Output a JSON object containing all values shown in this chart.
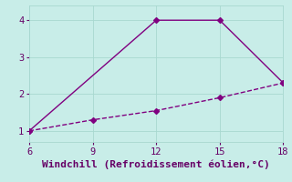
{
  "xlabel": "Windchill (Refroidissement éolien,°C)",
  "line1_x": [
    6,
    9,
    12,
    15,
    18
  ],
  "line1_y": [
    1.0,
    1.3,
    1.55,
    1.9,
    2.3
  ],
  "line2_x": [
    6,
    12,
    15,
    18
  ],
  "line2_y": [
    1.0,
    4.0,
    4.0,
    2.3
  ],
  "line_color": "#800080",
  "bg_color": "#C8EDE8",
  "grid_color": "#A8D8D0",
  "xlim": [
    6,
    18
  ],
  "ylim": [
    0.7,
    4.4
  ],
  "xticks": [
    6,
    9,
    12,
    15,
    18
  ],
  "yticks": [
    1,
    2,
    3,
    4
  ],
  "marker": "D",
  "marker_size": 3,
  "linewidth": 1.0,
  "xlabel_fontsize": 8,
  "tick_fontsize": 7.5
}
